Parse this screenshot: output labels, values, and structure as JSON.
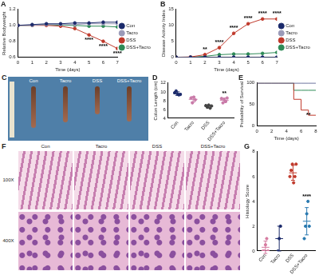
{
  "chart_data": [
    {
      "type": "line",
      "title": "A",
      "x_label": "Time (days)",
      "y_label": "Relative Bodyweight",
      "x": [
        0,
        1,
        2,
        3,
        4,
        5,
        6,
        7
      ],
      "xlim": [
        0,
        7
      ],
      "xticks": [
        0,
        1,
        2,
        3,
        4,
        5,
        6,
        7
      ],
      "ylim": [
        0.6,
        1.2
      ],
      "yticks": [
        0.6,
        0.8,
        {
          "value": 1,
          "label": "1.0"
        },
        1.2
      ],
      "grid": false,
      "legend": "right",
      "marker": "circle",
      "series": [
        {
          "name": "Con",
          "color": "#1b2a6b",
          "values": [
            1,
            1.01,
            1.02,
            1.02,
            1.03,
            1.03,
            1.04,
            1.04
          ]
        },
        {
          "name": "Tacro",
          "color": "#9a9ab8",
          "values": [
            1,
            1,
            1.01,
            1.01,
            1.01,
            1.02,
            1.02,
            1.02
          ]
        },
        {
          "name": "DSS",
          "color": "#c0392b",
          "values": [
            1,
            1,
            1,
            0.99,
            0.96,
            0.88,
            0.8,
            0.71
          ]
        },
        {
          "name": "DSS+Tacro",
          "color": "#2e8b57",
          "values": [
            1,
            1,
            1.01,
            1,
            1,
            0.99,
            0.99,
            0.98
          ]
        }
      ],
      "annotations": [
        {
          "x": 5,
          "text": "****",
          "series": "DSS"
        },
        {
          "x": 6,
          "text": "****",
          "series": "DSS"
        },
        {
          "x": 7,
          "text": "****",
          "series": "DSS"
        }
      ]
    },
    {
      "type": "line",
      "title": "B",
      "x_label": "Time (days)",
      "y_label": "Disease Activity Index",
      "x": [
        0,
        1,
        2,
        3,
        4,
        5,
        6,
        7
      ],
      "xlim": [
        0,
        7
      ],
      "xticks": [
        0,
        1,
        2,
        3,
        4,
        5,
        6,
        7
      ],
      "ylim": [
        0,
        15
      ],
      "yticks": [
        0,
        5,
        10,
        15
      ],
      "grid": false,
      "legend": "right",
      "marker": "circle",
      "series": [
        {
          "name": "Con",
          "color": "#1b2a6b",
          "values": [
            0,
            0,
            0,
            0,
            0,
            0,
            0,
            0
          ]
        },
        {
          "name": "Tacro",
          "color": "#9a9ab8",
          "values": [
            0,
            0,
            0,
            0,
            0,
            0,
            0,
            0
          ]
        },
        {
          "name": "DSS",
          "color": "#c0392b",
          "values": [
            0,
            0.1,
            0.8,
            3,
            7.5,
            10.5,
            12,
            12
          ]
        },
        {
          "name": "DSS+Tacro",
          "color": "#2e8b57",
          "values": [
            0,
            0,
            0.3,
            0.8,
            1,
            1,
            1.2,
            1.5
          ]
        }
      ],
      "annotations": [
        {
          "x": 2,
          "text": "**"
        },
        {
          "x": 3,
          "text": "****"
        },
        {
          "x": 4,
          "text": "****"
        },
        {
          "x": 5,
          "text": "****"
        },
        {
          "x": 6,
          "text": "****"
        },
        {
          "x": 7,
          "text": "****"
        }
      ]
    },
    {
      "type": "dot",
      "title": "D",
      "y_label": "Colon Length (cm)",
      "categories": [
        "Con",
        "Tacro",
        "DSS",
        "DSS+Tacro"
      ],
      "colors": [
        "#1b2a6b",
        "#c97aa8",
        "#444444",
        "#c97aa8"
      ],
      "points": [
        [
          9.8,
          10.2,
          9.5,
          9.3,
          9.4
        ],
        [
          8.6,
          7.5,
          8.8,
          8.2
        ],
        [
          6.9,
          6.5,
          7,
          6.3,
          6.8
        ],
        [
          8.5,
          7.5,
          8.2,
          7.8,
          8.6
        ]
      ],
      "values": [
        9.6,
        8.3,
        6.7,
        8.1
      ],
      "errors": [
        0.4,
        0.6,
        0.3,
        0.5
      ],
      "ylim": [
        4,
        12
      ],
      "yticks": [
        4,
        6,
        8,
        10,
        12
      ],
      "grid": false,
      "annotations": [
        {
          "x": "DSS+Tacro",
          "text": "**"
        }
      ]
    },
    {
      "type": "line",
      "title": "E",
      "x_label": "Time (days)",
      "y_label": "Probability of Survival",
      "x": [
        0,
        1,
        2,
        3,
        4,
        5,
        6,
        7,
        8
      ],
      "xlim": [
        0,
        8
      ],
      "xticks": [
        0,
        2,
        4,
        6,
        8
      ],
      "ylim": [
        0,
        100
      ],
      "yticks": [
        0,
        50,
        100
      ],
      "grid": false,
      "line_style": "step",
      "series": [
        {
          "name": "Con",
          "color": "#1b2a6b",
          "values": [
            100,
            100,
            100,
            100,
            100,
            100,
            100,
            100,
            100
          ]
        },
        {
          "name": "Tacro",
          "color": "#9a9ab8",
          "values": [
            100,
            100,
            100,
            100,
            100,
            100,
            100,
            100,
            100
          ]
        },
        {
          "name": "DSS",
          "color": "#c0392b",
          "values": [
            100,
            100,
            100,
            100,
            100,
            100,
            62,
            37,
            25
          ]
        },
        {
          "name": "DSS+Tacro",
          "color": "#2e8b57",
          "values": [
            100,
            100,
            100,
            100,
            100,
            100,
            83,
            83,
            83
          ]
        }
      ],
      "annotations": [
        {
          "x": 7,
          "text": "**",
          "series": "DSS"
        }
      ]
    },
    {
      "type": "dot",
      "title": "G",
      "y_label": "Histology Score",
      "categories": [
        "Con",
        "Tacro",
        "DSS",
        "DSS+Tacro"
      ],
      "colors": [
        "#d67ba0",
        "#1b2a6b",
        "#c0392b",
        "#2a7ab0"
      ],
      "points": [
        [
          0,
          0,
          0.5,
          1,
          0
        ],
        [
          0,
          1,
          2
        ],
        [
          6,
          6.5,
          7,
          5.5,
          6,
          7
        ],
        [
          1,
          2,
          3,
          4,
          2
        ]
      ],
      "values": [
        0.3,
        1,
        6.3,
        2.4
      ],
      "errors": [
        0.5,
        1,
        0.6,
        1.1
      ],
      "ylim": [
        0,
        8
      ],
      "yticks": [
        0,
        2,
        4,
        6,
        8
      ],
      "grid": false,
      "annotations": [
        {
          "x": "DSS+Tacro",
          "text": "****"
        }
      ]
    }
  ],
  "images": [
    {
      "title": "C",
      "labels": [
        "Con",
        "Tacro",
        "DSS",
        "DSS+Tacro"
      ]
    },
    {
      "title": "F",
      "labels": [
        "Con",
        "Tacro",
        "DSS",
        "DSS+Tacro"
      ],
      "rows": [
        "100X",
        "400X"
      ]
    }
  ]
}
